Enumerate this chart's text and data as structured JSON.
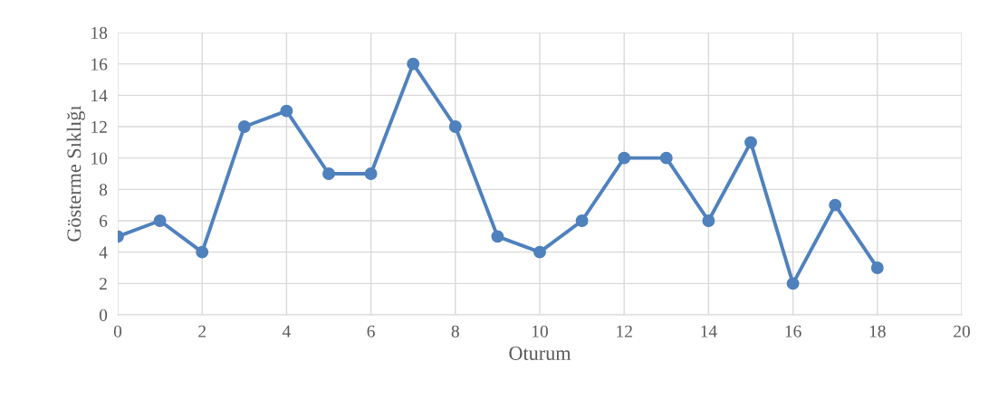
{
  "chart_data": {
    "type": "line",
    "xlabel": "Oturum",
    "ylabel": "Gösterme Sıklığı",
    "x": [
      0,
      1,
      2,
      3,
      4,
      5,
      6,
      7,
      8,
      9,
      10,
      11,
      12,
      13,
      14,
      15,
      16,
      17,
      18
    ],
    "series": [
      {
        "color": "#4f81bd",
        "values": [
          5,
          6,
          4,
          12,
          13,
          9,
          9,
          16,
          12,
          5,
          4,
          6,
          10,
          10,
          6,
          11,
          2,
          7,
          3
        ]
      }
    ],
    "xlim": [
      0,
      20
    ],
    "xticks": [
      0,
      2,
      4,
      6,
      8,
      10,
      12,
      14,
      16,
      18,
      20
    ],
    "ylim": [
      0,
      18
    ],
    "yticks": [
      0,
      2,
      4,
      6,
      8,
      10,
      12,
      14,
      16,
      18
    ],
    "grid": true,
    "marker": "circle",
    "line_style": "solid"
  }
}
